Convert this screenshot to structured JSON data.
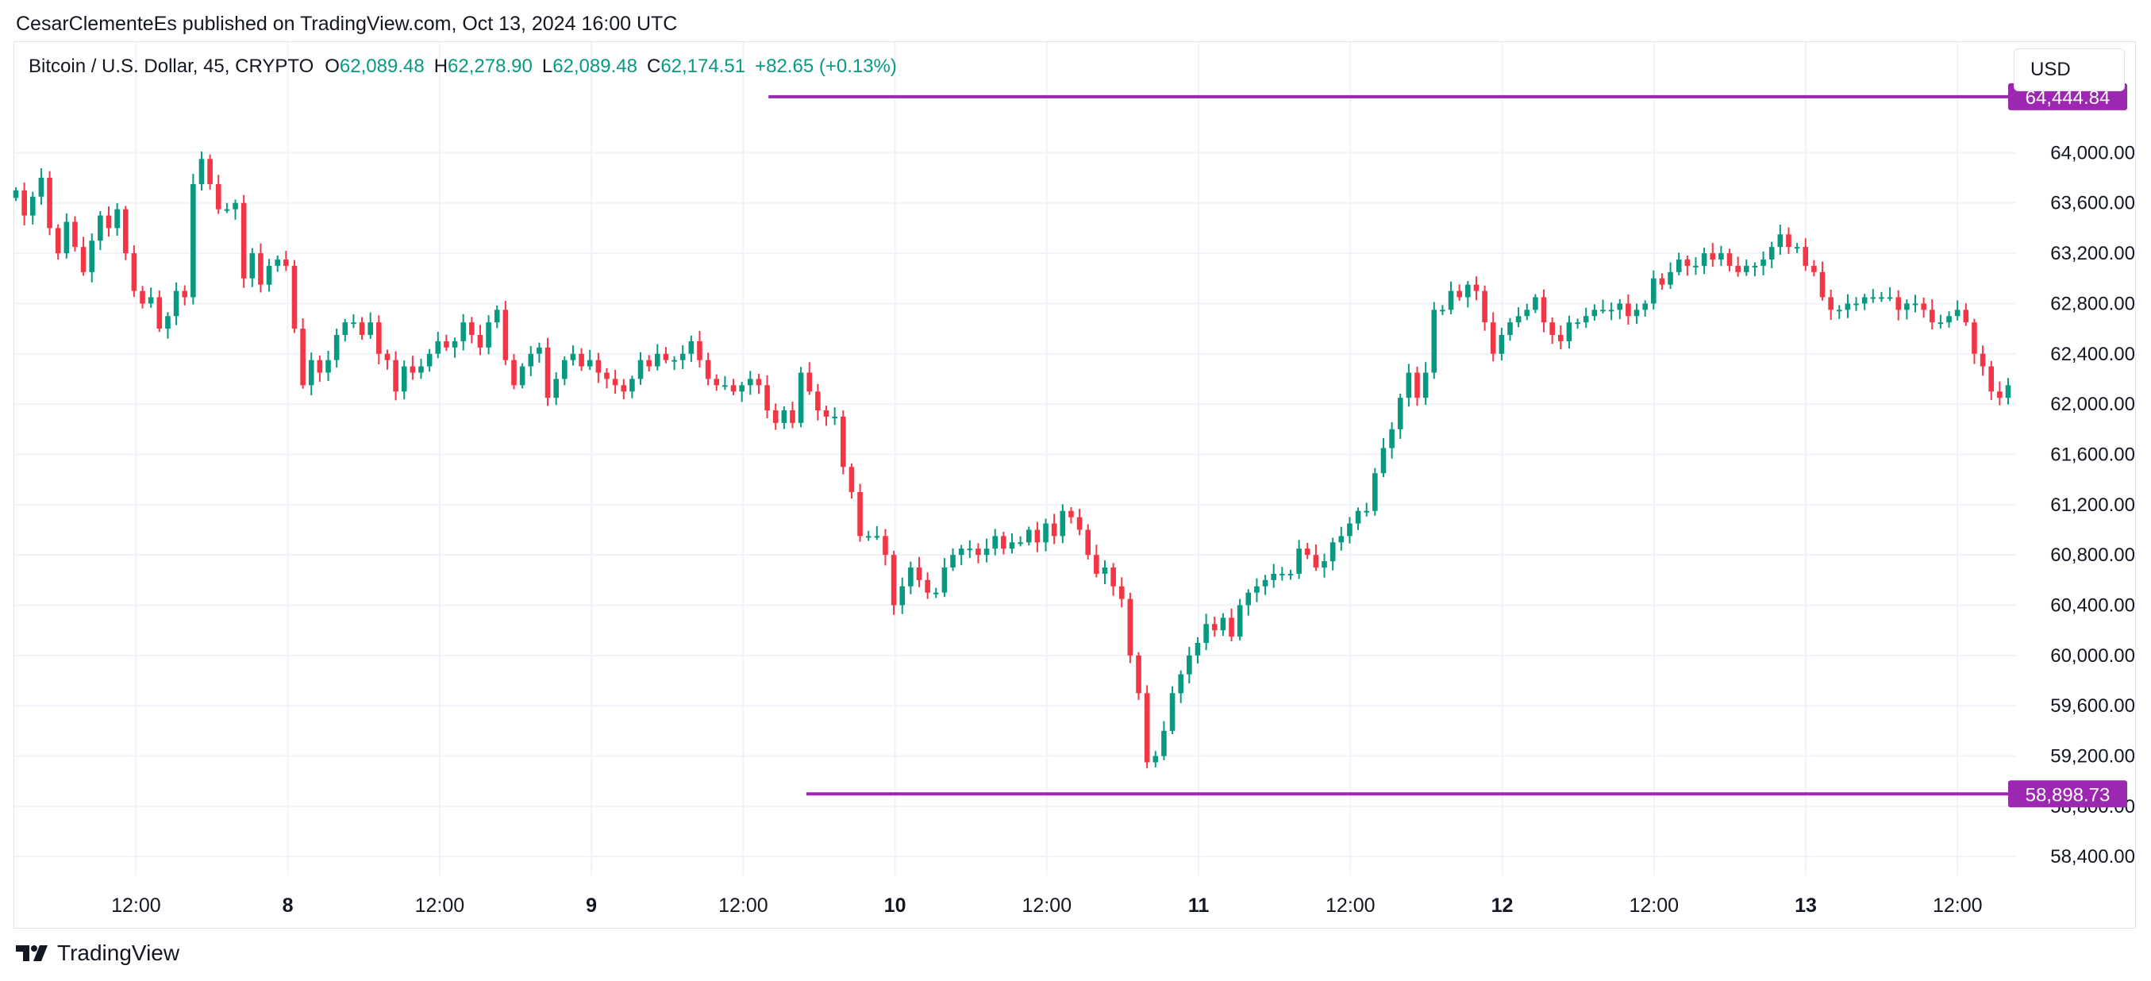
{
  "header": {
    "publish_line": "CesarClementeEs published on TradingView.com, Oct 13, 2024 16:00 UTC"
  },
  "legend": {
    "symbol": "Bitcoin / U.S. Dollar, 45, CRYPTO",
    "open_key": "O",
    "open": "62,089.48",
    "high_key": "H",
    "high": "62,278.90",
    "low_key": "L",
    "low": "62,089.48",
    "close_key": "C",
    "close": "62,174.51",
    "change": "+82.65 (+0.13%)"
  },
  "currency": "USD",
  "brand": {
    "name": "TradingView"
  },
  "colors": {
    "up": "#089981",
    "down": "#f23645",
    "level": "#9c27b0",
    "grid": "#f0f3fa",
    "axis_text": "#131722"
  },
  "chart_data": {
    "type": "candlestick",
    "symbol": "BTCUSD",
    "interval": "45",
    "y_axis": {
      "side": "right",
      "ylim": [
        58250,
        64880
      ],
      "ticks": [
        64000,
        63600,
        63200,
        62800,
        62400,
        62000,
        61600,
        61200,
        60800,
        60400,
        60000,
        59600,
        59200,
        58800,
        58400
      ],
      "tick_labels": [
        "64,000.00",
        "63,600.00",
        "63,200.00",
        "62,800.00",
        "62,400.00",
        "62,000.00",
        "61,600.00",
        "61,200.00",
        "60,800.00",
        "60,400.00",
        "60,000.00",
        "59,600.00",
        "59,200.00",
        "58,800.00",
        "58,400.00"
      ]
    },
    "x_axis": {
      "start": "Oct 7, 2024 02:30 UTC",
      "end": "Oct 13, 2024 16:00 UTC",
      "ticks": [
        {
          "label": "12:00",
          "t": "2024-10-07T12:00",
          "bold": false
        },
        {
          "label": "8",
          "t": "2024-10-08T00:00",
          "bold": true
        },
        {
          "label": "12:00",
          "t": "2024-10-08T12:00",
          "bold": false
        },
        {
          "label": "9",
          "t": "2024-10-09T00:00",
          "bold": true
        },
        {
          "label": "12:00",
          "t": "2024-10-09T12:00",
          "bold": false
        },
        {
          "label": "10",
          "t": "2024-10-10T00:00",
          "bold": true
        },
        {
          "label": "12:00",
          "t": "2024-10-10T12:00",
          "bold": false
        },
        {
          "label": "11",
          "t": "2024-10-11T00:00",
          "bold": true
        },
        {
          "label": "12:00",
          "t": "2024-10-11T12:00",
          "bold": false
        },
        {
          "label": "12",
          "t": "2024-10-12T00:00",
          "bold": true
        },
        {
          "label": "12:00",
          "t": "2024-10-12T12:00",
          "bold": false
        },
        {
          "label": "13",
          "t": "2024-10-13T00:00",
          "bold": true
        },
        {
          "label": "12:00",
          "t": "2024-10-13T12:00",
          "bold": false
        }
      ]
    },
    "levels": [
      {
        "price": 64444.84,
        "label": "64,444.84",
        "from": "2024-10-09T14:00"
      },
      {
        "price": 58898.73,
        "label": "58,898.73",
        "from": "2024-10-09T17:00"
      }
    ],
    "closes": [
      63700,
      63500,
      63650,
      63800,
      63400,
      63200,
      63450,
      63250,
      63050,
      63300,
      63500,
      63400,
      63550,
      63200,
      62900,
      62800,
      62850,
      62600,
      62700,
      62900,
      62850,
      63750,
      63950,
      63750,
      63550,
      63550,
      63600,
      63000,
      63200,
      62950,
      63100,
      63150,
      63100,
      62600,
      62150,
      62350,
      62250,
      62350,
      62550,
      62650,
      62650,
      62550,
      62650,
      62400,
      62350,
      62100,
      62300,
      62250,
      62300,
      62400,
      62500,
      62450,
      62500,
      62650,
      62550,
      62450,
      62650,
      62750,
      62350,
      62150,
      62300,
      62400,
      62450,
      62050,
      62200,
      62350,
      62400,
      62300,
      62350,
      62250,
      62200,
      62150,
      62100,
      62200,
      62350,
      62300,
      62400,
      62350,
      62350,
      62400,
      62500,
      62350,
      62200,
      62150,
      62150,
      62100,
      62150,
      62200,
      62150,
      61950,
      61850,
      61950,
      61850,
      62250,
      62100,
      61950,
      61900,
      61900,
      61500,
      61300,
      60950,
      60950,
      60950,
      60800,
      60400,
      60550,
      60700,
      60600,
      60500,
      60500,
      60700,
      60800,
      60850,
      60850,
      60800,
      60850,
      60950,
      60850,
      60900,
      60900,
      61000,
      60900,
      61050,
      60950,
      61150,
      61100,
      61000,
      60800,
      60650,
      60700,
      60550,
      60450,
      60000,
      59700,
      59150,
      59200,
      59400,
      59700,
      59850,
      60000,
      60100,
      60250,
      60200,
      60300,
      60150,
      60400,
      60500,
      60550,
      60600,
      60650,
      60650,
      60650,
      60850,
      60800,
      60700,
      60750,
      60900,
      60950,
      61050,
      61150,
      61150,
      61450,
      61650,
      61800,
      62050,
      62250,
      62050,
      62250,
      62750,
      62750,
      62900,
      62850,
      62950,
      62900,
      62650,
      62400,
      62550,
      62650,
      62700,
      62750,
      62850,
      62650,
      62550,
      62500,
      62650,
      62650,
      62700,
      62750,
      62750,
      62750,
      62800,
      62700,
      62750,
      62800,
      63000,
      62950,
      63050,
      63150,
      63100,
      63100,
      63200,
      63150,
      63200,
      63100,
      63050,
      63100,
      63100,
      63150,
      63250,
      63350,
      63250,
      63250,
      63100,
      63050,
      62850,
      62750,
      62750,
      62800,
      62800,
      62850,
      62850,
      62850,
      62850,
      62750,
      62800,
      62800,
      62750,
      62650,
      62650,
      62700,
      62750,
      62650,
      62400,
      62300,
      62100,
      62050,
      62150
    ]
  }
}
